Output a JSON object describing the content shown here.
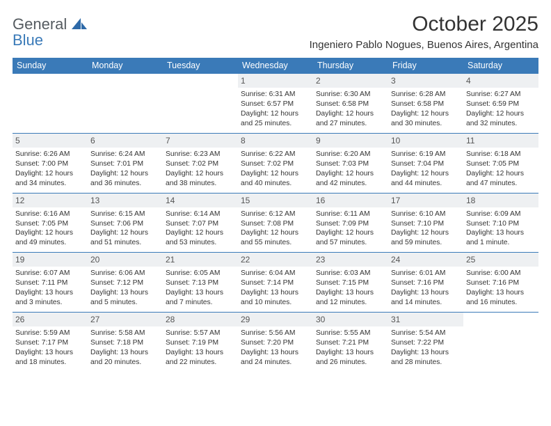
{
  "brand": {
    "name1": "General",
    "name2": "Blue"
  },
  "title": "October 2025",
  "location": "Ingeniero Pablo Nogues, Buenos Aires, Argentina",
  "colors": {
    "header_bg": "#3a7ab8",
    "header_text": "#ffffff",
    "daynum_bg": "#eef0f2",
    "border": "#3a7ab8",
    "logo_gray": "#555b60",
    "logo_blue": "#3a7ab8",
    "page_bg": "#ffffff",
    "text": "#333333"
  },
  "fonts": {
    "title_pt": 30,
    "location_pt": 15,
    "dayhead_pt": 12.5,
    "daynum_pt": 12,
    "cell_pt": 10.3
  },
  "day_headers": [
    "Sunday",
    "Monday",
    "Tuesday",
    "Wednesday",
    "Thursday",
    "Friday",
    "Saturday"
  ],
  "weeks": [
    [
      {
        "n": "",
        "empty": true
      },
      {
        "n": "",
        "empty": true
      },
      {
        "n": "",
        "empty": true
      },
      {
        "n": "1",
        "sr": "Sunrise: 6:31 AM",
        "ss": "Sunset: 6:57 PM",
        "d1": "Daylight: 12 hours",
        "d2": "and 25 minutes."
      },
      {
        "n": "2",
        "sr": "Sunrise: 6:30 AM",
        "ss": "Sunset: 6:58 PM",
        "d1": "Daylight: 12 hours",
        "d2": "and 27 minutes."
      },
      {
        "n": "3",
        "sr": "Sunrise: 6:28 AM",
        "ss": "Sunset: 6:58 PM",
        "d1": "Daylight: 12 hours",
        "d2": "and 30 minutes."
      },
      {
        "n": "4",
        "sr": "Sunrise: 6:27 AM",
        "ss": "Sunset: 6:59 PM",
        "d1": "Daylight: 12 hours",
        "d2": "and 32 minutes."
      }
    ],
    [
      {
        "n": "5",
        "sr": "Sunrise: 6:26 AM",
        "ss": "Sunset: 7:00 PM",
        "d1": "Daylight: 12 hours",
        "d2": "and 34 minutes."
      },
      {
        "n": "6",
        "sr": "Sunrise: 6:24 AM",
        "ss": "Sunset: 7:01 PM",
        "d1": "Daylight: 12 hours",
        "d2": "and 36 minutes."
      },
      {
        "n": "7",
        "sr": "Sunrise: 6:23 AM",
        "ss": "Sunset: 7:02 PM",
        "d1": "Daylight: 12 hours",
        "d2": "and 38 minutes."
      },
      {
        "n": "8",
        "sr": "Sunrise: 6:22 AM",
        "ss": "Sunset: 7:02 PM",
        "d1": "Daylight: 12 hours",
        "d2": "and 40 minutes."
      },
      {
        "n": "9",
        "sr": "Sunrise: 6:20 AM",
        "ss": "Sunset: 7:03 PM",
        "d1": "Daylight: 12 hours",
        "d2": "and 42 minutes."
      },
      {
        "n": "10",
        "sr": "Sunrise: 6:19 AM",
        "ss": "Sunset: 7:04 PM",
        "d1": "Daylight: 12 hours",
        "d2": "and 44 minutes."
      },
      {
        "n": "11",
        "sr": "Sunrise: 6:18 AM",
        "ss": "Sunset: 7:05 PM",
        "d1": "Daylight: 12 hours",
        "d2": "and 47 minutes."
      }
    ],
    [
      {
        "n": "12",
        "sr": "Sunrise: 6:16 AM",
        "ss": "Sunset: 7:05 PM",
        "d1": "Daylight: 12 hours",
        "d2": "and 49 minutes."
      },
      {
        "n": "13",
        "sr": "Sunrise: 6:15 AM",
        "ss": "Sunset: 7:06 PM",
        "d1": "Daylight: 12 hours",
        "d2": "and 51 minutes."
      },
      {
        "n": "14",
        "sr": "Sunrise: 6:14 AM",
        "ss": "Sunset: 7:07 PM",
        "d1": "Daylight: 12 hours",
        "d2": "and 53 minutes."
      },
      {
        "n": "15",
        "sr": "Sunrise: 6:12 AM",
        "ss": "Sunset: 7:08 PM",
        "d1": "Daylight: 12 hours",
        "d2": "and 55 minutes."
      },
      {
        "n": "16",
        "sr": "Sunrise: 6:11 AM",
        "ss": "Sunset: 7:09 PM",
        "d1": "Daylight: 12 hours",
        "d2": "and 57 minutes."
      },
      {
        "n": "17",
        "sr": "Sunrise: 6:10 AM",
        "ss": "Sunset: 7:10 PM",
        "d1": "Daylight: 12 hours",
        "d2": "and 59 minutes."
      },
      {
        "n": "18",
        "sr": "Sunrise: 6:09 AM",
        "ss": "Sunset: 7:10 PM",
        "d1": "Daylight: 13 hours",
        "d2": "and 1 minute."
      }
    ],
    [
      {
        "n": "19",
        "sr": "Sunrise: 6:07 AM",
        "ss": "Sunset: 7:11 PM",
        "d1": "Daylight: 13 hours",
        "d2": "and 3 minutes."
      },
      {
        "n": "20",
        "sr": "Sunrise: 6:06 AM",
        "ss": "Sunset: 7:12 PM",
        "d1": "Daylight: 13 hours",
        "d2": "and 5 minutes."
      },
      {
        "n": "21",
        "sr": "Sunrise: 6:05 AM",
        "ss": "Sunset: 7:13 PM",
        "d1": "Daylight: 13 hours",
        "d2": "and 7 minutes."
      },
      {
        "n": "22",
        "sr": "Sunrise: 6:04 AM",
        "ss": "Sunset: 7:14 PM",
        "d1": "Daylight: 13 hours",
        "d2": "and 10 minutes."
      },
      {
        "n": "23",
        "sr": "Sunrise: 6:03 AM",
        "ss": "Sunset: 7:15 PM",
        "d1": "Daylight: 13 hours",
        "d2": "and 12 minutes."
      },
      {
        "n": "24",
        "sr": "Sunrise: 6:01 AM",
        "ss": "Sunset: 7:16 PM",
        "d1": "Daylight: 13 hours",
        "d2": "and 14 minutes."
      },
      {
        "n": "25",
        "sr": "Sunrise: 6:00 AM",
        "ss": "Sunset: 7:16 PM",
        "d1": "Daylight: 13 hours",
        "d2": "and 16 minutes."
      }
    ],
    [
      {
        "n": "26",
        "sr": "Sunrise: 5:59 AM",
        "ss": "Sunset: 7:17 PM",
        "d1": "Daylight: 13 hours",
        "d2": "and 18 minutes."
      },
      {
        "n": "27",
        "sr": "Sunrise: 5:58 AM",
        "ss": "Sunset: 7:18 PM",
        "d1": "Daylight: 13 hours",
        "d2": "and 20 minutes."
      },
      {
        "n": "28",
        "sr": "Sunrise: 5:57 AM",
        "ss": "Sunset: 7:19 PM",
        "d1": "Daylight: 13 hours",
        "d2": "and 22 minutes."
      },
      {
        "n": "29",
        "sr": "Sunrise: 5:56 AM",
        "ss": "Sunset: 7:20 PM",
        "d1": "Daylight: 13 hours",
        "d2": "and 24 minutes."
      },
      {
        "n": "30",
        "sr": "Sunrise: 5:55 AM",
        "ss": "Sunset: 7:21 PM",
        "d1": "Daylight: 13 hours",
        "d2": "and 26 minutes."
      },
      {
        "n": "31",
        "sr": "Sunrise: 5:54 AM",
        "ss": "Sunset: 7:22 PM",
        "d1": "Daylight: 13 hours",
        "d2": "and 28 minutes."
      },
      {
        "n": "",
        "empty": true
      }
    ]
  ]
}
